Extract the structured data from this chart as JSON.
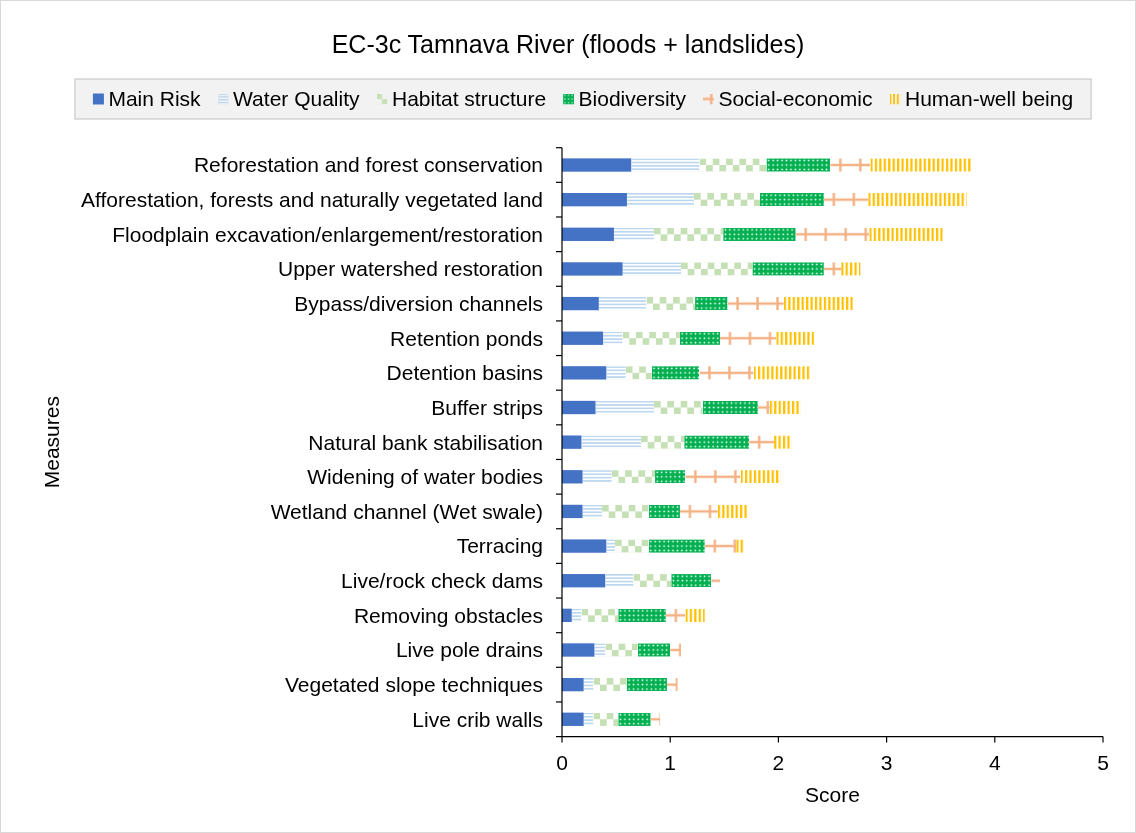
{
  "chart_data": {
    "type": "bar",
    "orientation": "horizontal",
    "stacked": true,
    "title": "EC-3c Tamnava River (floods + landslides)",
    "xlabel": "Score",
    "ylabel": "Measures",
    "legend": "top",
    "categories": [
      "Reforestation and forest conservation",
      "Afforestation, forests and naturally vegetated land",
      "Floodplain excavation/enlargement/restoration",
      "Upper watershed restoration",
      "Bypass/diversion channels",
      "Retention ponds",
      "Detention basins",
      "Buffer strips",
      "Natural bank stabilisation",
      "Widening of water bodies",
      "Wetland channel (Wet swale)",
      "Terracing",
      "Live/rock check dams",
      "Removing obstacles",
      "Live pole drains",
      "Vegetated slope techniques",
      "Live crib walls"
    ],
    "xlim": [
      0,
      5
    ],
    "xticks": [
      0,
      1,
      2,
      3,
      4,
      5
    ],
    "series": [
      {
        "name": "Main Risk",
        "color": "#4472c4",
        "values": [
          0.64,
          0.6,
          0.48,
          0.56,
          0.34,
          0.38,
          0.41,
          0.31,
          0.18,
          0.19,
          0.19,
          0.41,
          0.4,
          0.09,
          0.3,
          0.2,
          0.2
        ]
      },
      {
        "name": "Water Quality",
        "color": "#bdd7ee",
        "values": [
          0.63,
          0.62,
          0.37,
          0.54,
          0.44,
          0.18,
          0.18,
          0.54,
          0.55,
          0.27,
          0.18,
          0.08,
          0.26,
          0.09,
          0.1,
          0.09,
          0.09
        ]
      },
      {
        "name": "Habitat structure",
        "color": "#c5e0b4",
        "values": [
          0.62,
          0.61,
          0.64,
          0.66,
          0.45,
          0.53,
          0.24,
          0.45,
          0.4,
          0.4,
          0.43,
          0.31,
          0.35,
          0.34,
          0.3,
          0.31,
          0.23
        ]
      },
      {
        "name": "Biodiversity",
        "color": "#00b050",
        "values": [
          0.59,
          0.59,
          0.67,
          0.66,
          0.3,
          0.37,
          0.44,
          0.51,
          0.6,
          0.28,
          0.29,
          0.52,
          0.37,
          0.44,
          0.3,
          0.37,
          0.3
        ]
      },
      {
        "name": "Social-economic",
        "color": "#f4b183",
        "values": [
          0.37,
          0.41,
          0.68,
          0.16,
          0.52,
          0.52,
          0.5,
          0.11,
          0.23,
          0.51,
          0.35,
          0.29,
          0.08,
          0.18,
          0.1,
          0.1,
          0.09
        ]
      },
      {
        "name": "Human-well being",
        "color": "#ffc000",
        "values": [
          0.94,
          0.91,
          0.68,
          0.18,
          0.64,
          0.35,
          0.53,
          0.29,
          0.17,
          0.37,
          0.28,
          0.08,
          0,
          0.18,
          0,
          0,
          0
        ]
      }
    ]
  }
}
